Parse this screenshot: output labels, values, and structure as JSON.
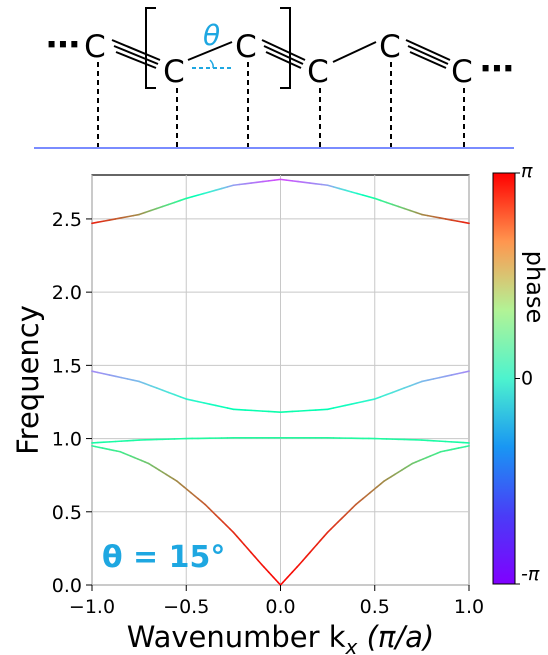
{
  "chain": {
    "atom_label": "C",
    "ellipsis": "⋯",
    "angle_symbol": "θ"
  },
  "chart_data": {
    "type": "line",
    "xlabel_prefix": "Wavenumber k",
    "xlabel_sub": "x",
    "xlabel_unit": " (π/a)",
    "ylabel": "Frequency",
    "xlim": [
      -1.0,
      1.0
    ],
    "ylim": [
      0.0,
      2.8
    ],
    "xticks": [
      "−1.0",
      "−0.5",
      "0.0",
      "0.5",
      "1.0"
    ],
    "xtick_values": [
      -1.0,
      -0.5,
      0.0,
      0.5,
      1.0
    ],
    "yticks": [
      "0.0",
      "0.5",
      "1.0",
      "1.5",
      "2.0",
      "2.5"
    ],
    "ytick_values": [
      0.0,
      0.5,
      1.0,
      1.5,
      2.0,
      2.5
    ],
    "grid": true,
    "annotation": "θ = 15°",
    "annotation_color": "#1ea7e1",
    "colorbar": {
      "label": "phase",
      "ticks": [
        "π",
        "0",
        "-π"
      ],
      "tick_values": [
        3.1416,
        0,
        -3.1416
      ],
      "colormap": "rainbow"
    },
    "series": [
      {
        "x": [
          -1.0,
          -0.75,
          -0.5,
          -0.25,
          0.0,
          0.25,
          0.5,
          0.75,
          1.0
        ],
        "y": [
          2.47,
          2.53,
          2.64,
          2.73,
          2.77,
          2.73,
          2.64,
          2.53,
          2.47
        ],
        "phase": [
          2.9,
          2.0,
          0.4,
          -1.8,
          -2.6,
          -1.8,
          0.4,
          2.0,
          2.9
        ]
      },
      {
        "x": [
          -1.0,
          -0.75,
          -0.5,
          -0.25,
          0.0,
          0.25,
          0.5,
          0.75,
          1.0
        ],
        "y": [
          1.46,
          1.39,
          1.27,
          1.2,
          1.18,
          1.2,
          1.27,
          1.39,
          1.46
        ],
        "phase": [
          -2.0,
          -1.5,
          -0.6,
          0.0,
          0.2,
          0.0,
          -0.6,
          -1.5,
          -2.0
        ]
      },
      {
        "x": [
          -1.0,
          -0.75,
          -0.5,
          -0.25,
          0.0,
          0.25,
          0.5,
          0.75,
          1.0
        ],
        "y": [
          0.97,
          0.99,
          1.0,
          1.005,
          1.005,
          1.005,
          1.0,
          0.99,
          0.97
        ],
        "phase": [
          0.3,
          0.35,
          0.4,
          0.45,
          0.45,
          0.45,
          0.4,
          0.35,
          0.3
        ]
      },
      {
        "x": [
          -1.0,
          -0.85,
          -0.7,
          -0.55,
          -0.4,
          -0.25,
          -0.1,
          0.0,
          0.1,
          0.25,
          0.4,
          0.55,
          0.7,
          0.85,
          1.0
        ],
        "y": [
          0.95,
          0.91,
          0.83,
          0.71,
          0.55,
          0.36,
          0.14,
          0.0,
          0.14,
          0.36,
          0.55,
          0.71,
          0.83,
          0.91,
          0.95
        ],
        "phase": [
          0.5,
          0.8,
          1.4,
          2.0,
          2.4,
          2.8,
          3.0,
          3.1,
          3.0,
          2.8,
          2.4,
          2.0,
          1.4,
          0.8,
          0.5
        ]
      }
    ]
  }
}
